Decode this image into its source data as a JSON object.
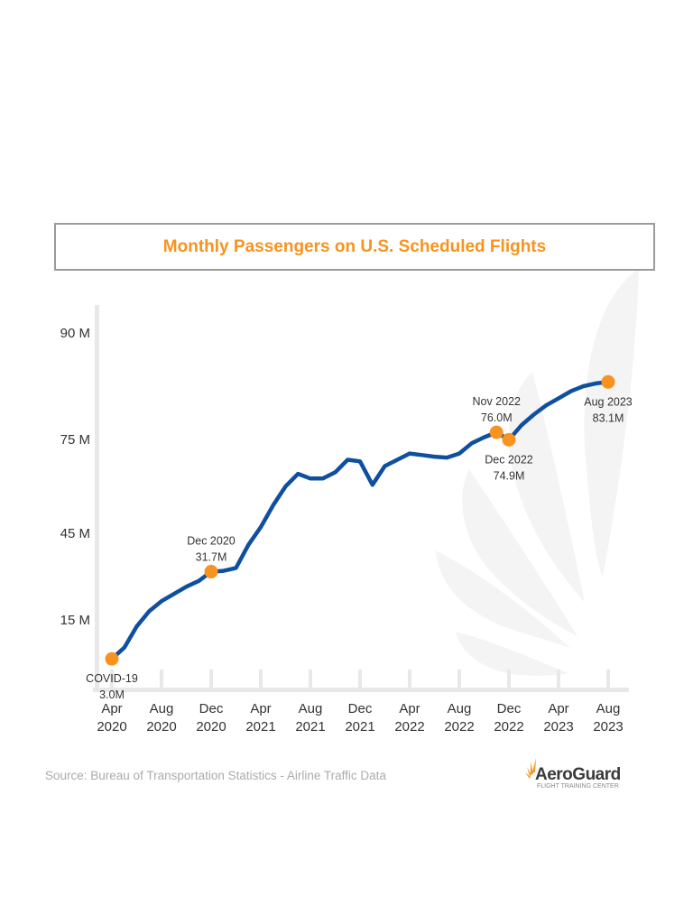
{
  "chart_data": {
    "type": "line",
    "title": "Monthly Passengers on U.S. Scheduled Flights",
    "xlabel": "",
    "ylabel": "",
    "y_ticks": [
      {
        "value": 15,
        "label": "15 M"
      },
      {
        "value": 45,
        "label": "45 M"
      },
      {
        "value": 75,
        "label": "75 M"
      },
      {
        "value": 90,
        "label": "90 M"
      }
    ],
    "x_ticks": [
      {
        "month": "2020-04",
        "label": [
          "Apr",
          "2020"
        ]
      },
      {
        "month": "2020-08",
        "label": [
          "Aug",
          "2020"
        ]
      },
      {
        "month": "2020-12",
        "label": [
          "Dec",
          "2020"
        ]
      },
      {
        "month": "2021-04",
        "label": [
          "Apr",
          "2021"
        ]
      },
      {
        "month": "2021-08",
        "label": [
          "Aug",
          "2021"
        ]
      },
      {
        "month": "2021-12",
        "label": [
          "Dec",
          "2021"
        ]
      },
      {
        "month": "2022-04",
        "label": [
          "Apr",
          "2022"
        ]
      },
      {
        "month": "2022-08",
        "label": [
          "Aug",
          "2022"
        ]
      },
      {
        "month": "2022-12",
        "label": [
          "Dec",
          "2022"
        ]
      },
      {
        "month": "2023-04",
        "label": [
          "Apr",
          "2023"
        ]
      },
      {
        "month": "2023-08",
        "label": [
          "Aug",
          "2023"
        ]
      }
    ],
    "grid": false,
    "series": [
      {
        "color": "#0f4fa0",
        "x": [
          "2020-04",
          "2020-05",
          "2020-06",
          "2020-07",
          "2020-08",
          "2020-09",
          "2020-10",
          "2020-11",
          "2020-12",
          "2021-01",
          "2021-02",
          "2021-03",
          "2021-04",
          "2021-05",
          "2021-06",
          "2021-07",
          "2021-08",
          "2021-09",
          "2021-10",
          "2021-11",
          "2021-12",
          "2022-01",
          "2022-02",
          "2022-03",
          "2022-04",
          "2022-05",
          "2022-06",
          "2022-07",
          "2022-08",
          "2022-09",
          "2022-10",
          "2022-11",
          "2022-12",
          "2023-01",
          "2023-02",
          "2023-03",
          "2023-04",
          "2023-05",
          "2023-06",
          "2023-07",
          "2023-08"
        ],
        "values": [
          3.0,
          6.5,
          13,
          18,
          21.5,
          24,
          26.5,
          28.5,
          31.7,
          32,
          33,
          41,
          47,
          54,
          60,
          64,
          62.5,
          62.5,
          64.5,
          68.5,
          68,
          60.5,
          66.5,
          68.5,
          70.5,
          70,
          69.5,
          69.2,
          70.5,
          73.8,
          75.3,
          76.0,
          74.9,
          77,
          78.5,
          79.8,
          80.8,
          81.8,
          82.5,
          82.9,
          83.1
        ]
      }
    ],
    "annotations": [
      {
        "month": "2020-04",
        "value": 3.0,
        "lines": [
          "COVID-19",
          "3.0M"
        ],
        "position": "below"
      },
      {
        "month": "2020-12",
        "value": 31.7,
        "lines": [
          "Dec 2020",
          "31.7M"
        ],
        "position": "above"
      },
      {
        "month": "2022-11",
        "value": 76.0,
        "lines": [
          "Nov 2022",
          "76.0M"
        ],
        "position": "above"
      },
      {
        "month": "2022-12",
        "value": 74.9,
        "lines": [
          "Dec 2022",
          "74.9M"
        ],
        "position": "below"
      },
      {
        "month": "2023-08",
        "value": 83.1,
        "lines": [
          "Aug 2023",
          "83.1M"
        ],
        "position": "below"
      }
    ],
    "marker_color": "#f7931e"
  },
  "title": "Monthly Passengers on U.S. Scheduled Flights",
  "source": "Source: Bureau of Transportation Statistics - Airline Traffic Data",
  "logo": {
    "name": "AeroGuard",
    "tagline": "FLIGHT TRAINING CENTER"
  }
}
